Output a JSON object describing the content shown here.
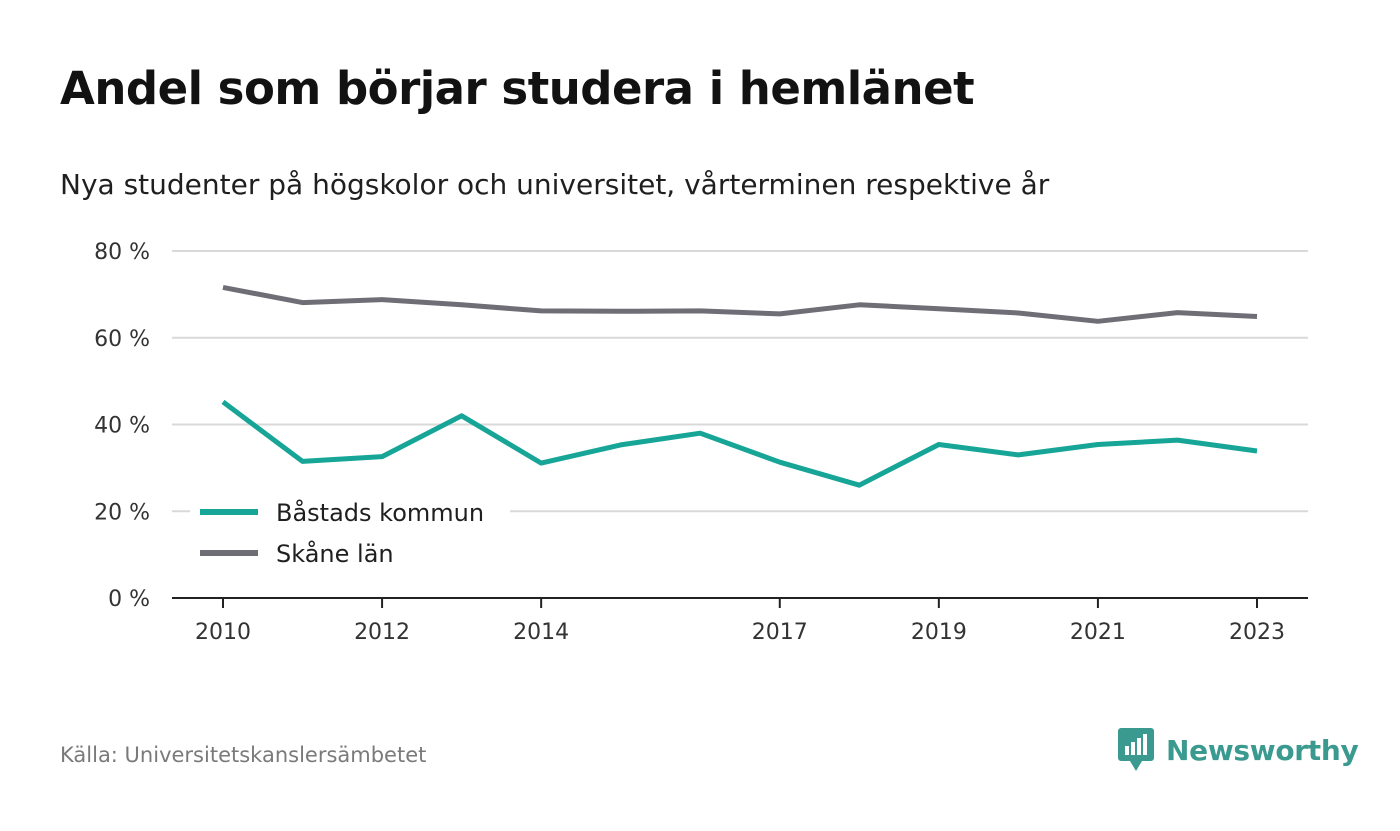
{
  "title": "Andel som börjar studera i hemlänet",
  "subtitle": "Nya studenter på högskolor och universitet, vårterminen respektive år",
  "source": "Källa: Universitetskanslersämbetet",
  "brand": {
    "name": "Newsworthy",
    "logo_icon": "newsworthy-bar-chart-icon",
    "color": "#3a9a8f"
  },
  "chart_data": {
    "type": "line",
    "x": [
      2010,
      2011,
      2012,
      2013,
      2014,
      2015,
      2016,
      2017,
      2018,
      2019,
      2020,
      2021,
      2022,
      2023
    ],
    "x_tick_labels": [
      "2010",
      "2012",
      "2014",
      "2017",
      "2019",
      "2021",
      "2023"
    ],
    "y_tick_labels": [
      "0 %",
      "20 %",
      "40 %",
      "60 %",
      "80 %"
    ],
    "ylim": [
      0,
      80
    ],
    "grid": true,
    "legend_position": "bottom-left",
    "series": [
      {
        "name": "Båstads kommun",
        "color": "#16a596",
        "values": [
          45.2,
          31.5,
          32.6,
          42.0,
          31.1,
          35.3,
          38.0,
          31.3,
          26.0,
          35.4,
          33.0,
          35.4,
          36.4,
          33.9
        ]
      },
      {
        "name": "Skåne län",
        "color": "#6f6e76",
        "values": [
          71.6,
          68.1,
          68.8,
          67.6,
          66.2,
          66.1,
          66.2,
          65.5,
          67.6,
          66.7,
          65.7,
          63.8,
          65.8,
          64.9
        ]
      }
    ]
  }
}
